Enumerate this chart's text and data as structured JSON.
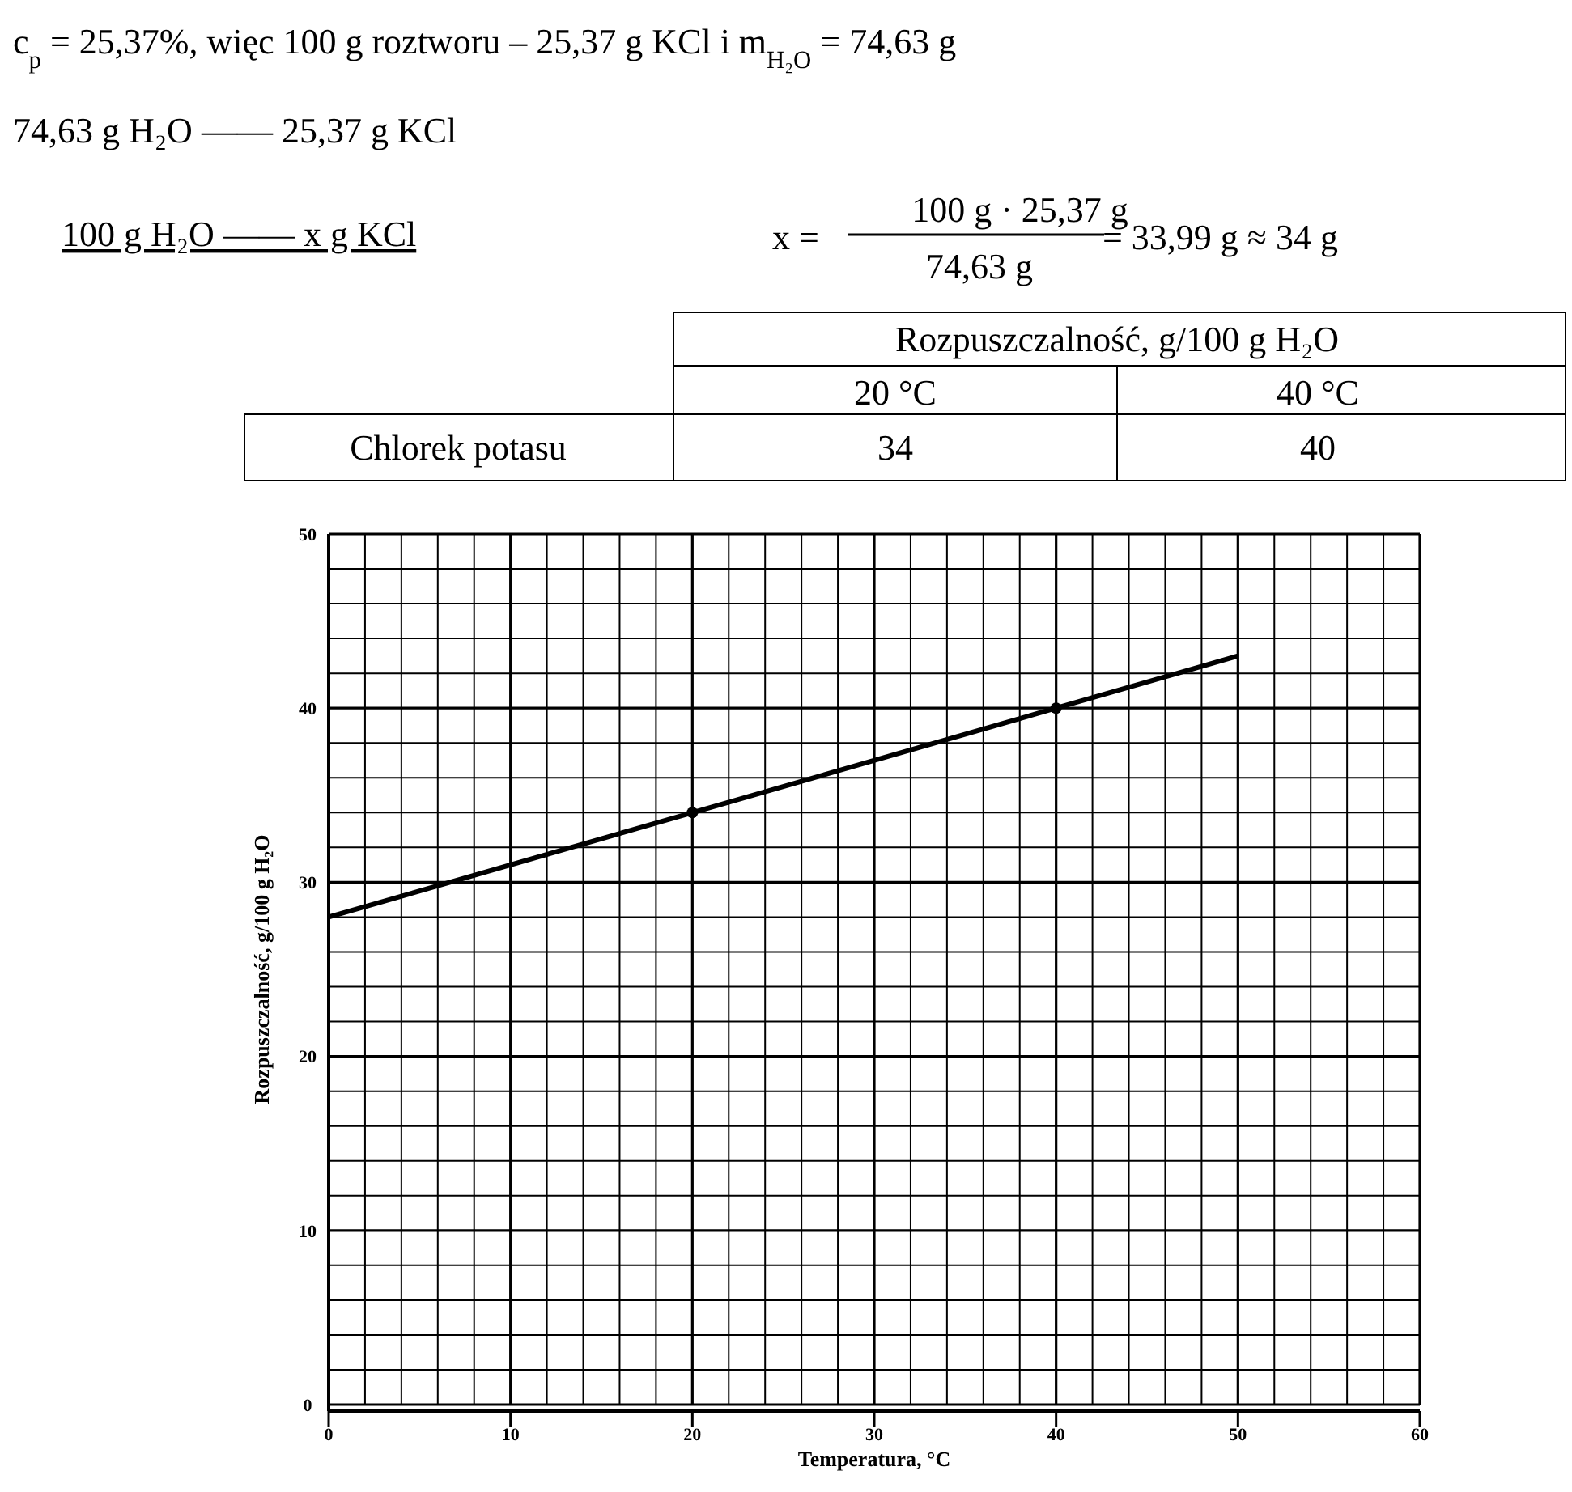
{
  "chart_data": {
    "type": "line",
    "xlabel": "Temperatura, °C",
    "ylabel": "Rozpuszczalność, g/100 g H₂O",
    "annotations": [
      "c$_{p}$ = 25,37%, więc 100 g roztworu – 25,37 g KCl i  m$_{H₂O}$ = 74,63 g",
      "74,63 g H₂O —— 25,37 g KCl",
      "100 g H₂O    —— x g KCl",
      "x =",
      "100 g · 25,37 g",
      "74,63 g",
      "= 33,99 g ≈ 34 g",
      "Rozpuszczalność, g/100 g H₂O",
      "20 °C",
      "40 °C",
      "Chlorek potasu",
      "34",
      "40"
    ],
    "series": [
      {
        "color": "#000000",
        "marker": "none",
        "x": [
          0,
          20,
          40,
          50
        ],
        "values": [
          28,
          34,
          40,
          43
        ]
      },
      {
        "type": "scatter",
        "color": "#000000",
        "marker": "circle",
        "x": [
          20,
          40
        ],
        "values": [
          34,
          40
        ]
      }
    ],
    "xlim": [
      0,
      60
    ],
    "ylim": [
      0,
      50
    ],
    "xticks": [
      0,
      {
        "value": 2,
        "label": null
      },
      {
        "value": 4,
        "label": null
      },
      {
        "value": 6,
        "label": null
      },
      {
        "value": 8,
        "label": null
      },
      10,
      {
        "value": 12,
        "label": null
      },
      {
        "value": 14,
        "label": null
      },
      {
        "value": 16,
        "label": null
      },
      {
        "value": 18,
        "label": null
      },
      20,
      {
        "value": 22,
        "label": null
      },
      {
        "value": 24,
        "label": null
      },
      {
        "value": 26,
        "label": null
      },
      {
        "value": 28,
        "label": null
      },
      30,
      {
        "value": 32,
        "label": null
      },
      {
        "value": 34,
        "label": null
      },
      {
        "value": 36,
        "label": null
      },
      {
        "value": 38,
        "label": null
      },
      40,
      {
        "value": 42,
        "label": null
      },
      {
        "value": 44,
        "label": null
      },
      {
        "value": 46,
        "label": null
      },
      {
        "value": 48,
        "label": null
      },
      50,
      {
        "value": 52,
        "label": null
      },
      {
        "value": 54,
        "label": null
      },
      {
        "value": 56,
        "label": null
      },
      {
        "value": 58,
        "label": null
      },
      60
    ],
    "yticks": [
      0,
      {
        "value": 2,
        "label": null
      },
      {
        "value": 4,
        "label": null
      },
      {
        "value": 6,
        "label": null
      },
      {
        "value": 8,
        "label": null
      },
      10,
      {
        "value": 12,
        "label": null
      },
      {
        "value": 14,
        "label": null
      },
      {
        "value": 16,
        "label": null
      },
      {
        "value": 18,
        "label": null
      },
      20,
      {
        "value": 22,
        "label": null
      },
      {
        "value": 24,
        "label": null
      },
      {
        "value": 26,
        "label": null
      },
      {
        "value": 28,
        "label": null
      },
      30,
      {
        "value": 32,
        "label": null
      },
      {
        "value": 34,
        "label": null
      },
      {
        "value": 36,
        "label": null
      },
      {
        "value": 38,
        "label": null
      },
      40,
      {
        "value": 42,
        "label": null
      },
      {
        "value": 44,
        "label": null
      },
      {
        "value": 46,
        "label": null
      },
      {
        "value": 48,
        "label": null
      },
      50
    ],
    "grid": true
  }
}
